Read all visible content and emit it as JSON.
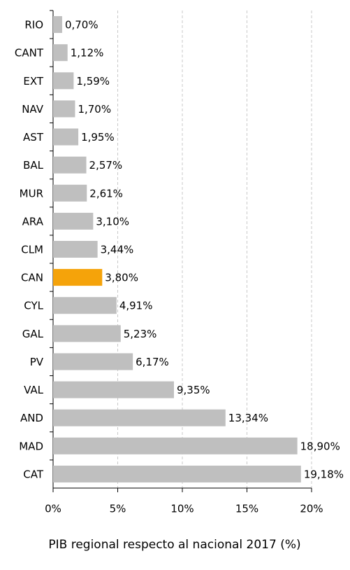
{
  "chart_data": {
    "type": "bar",
    "orientation": "horizontal",
    "xlabel": "PIB regional respecto al nacional 2017 (%)",
    "categories": [
      "RIO",
      "CANT",
      "EXT",
      "NAV",
      "AST",
      "BAL",
      "MUR",
      "ARA",
      "CLM",
      "CAN",
      "CYL",
      "GAL",
      "PV",
      "VAL",
      "AND",
      "MAD",
      "CAT"
    ],
    "values": [
      0.7,
      1.12,
      1.59,
      1.7,
      1.95,
      2.57,
      2.61,
      3.1,
      3.44,
      3.8,
      4.91,
      5.23,
      6.17,
      9.35,
      13.34,
      18.9,
      19.18
    ],
    "value_labels": [
      "0,70%",
      "1,12%",
      "1,59%",
      "1,70%",
      "1,95%",
      "2,57%",
      "2,61%",
      "3,10%",
      "3,44%",
      "3,80%",
      "4,91%",
      "5,23%",
      "6,17%",
      "9,35%",
      "13,34%",
      "18,90%",
      "19,18%"
    ],
    "colors": [
      "#bfbfbf",
      "#bfbfbf",
      "#bfbfbf",
      "#bfbfbf",
      "#bfbfbf",
      "#bfbfbf",
      "#bfbfbf",
      "#bfbfbf",
      "#bfbfbf",
      "#f5a30a",
      "#bfbfbf",
      "#bfbfbf",
      "#bfbfbf",
      "#bfbfbf",
      "#bfbfbf",
      "#bfbfbf",
      "#bfbfbf"
    ],
    "xlim": [
      0,
      20
    ],
    "xticks": [
      {
        "value": 0,
        "label": "0%"
      },
      {
        "value": 5,
        "label": "5%"
      },
      {
        "value": 10,
        "label": "10%"
      },
      {
        "value": 15,
        "label": "15%"
      },
      {
        "value": 20,
        "label": "20%"
      }
    ],
    "grid": true
  }
}
